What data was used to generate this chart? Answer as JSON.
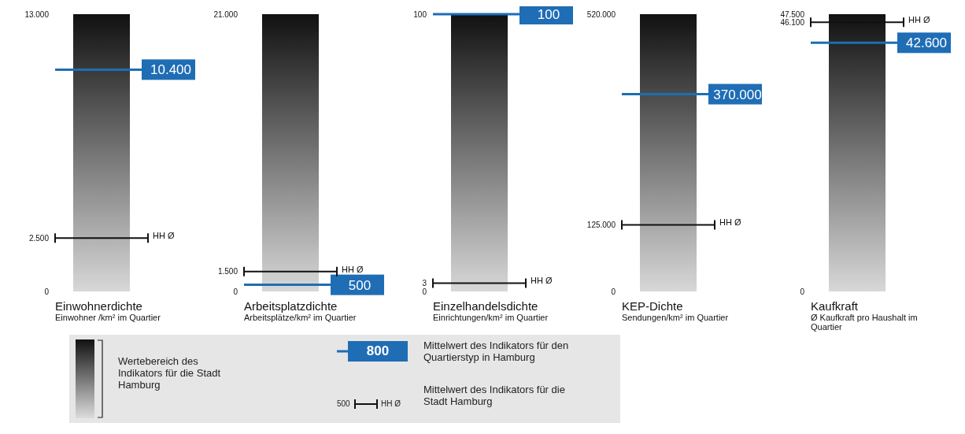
{
  "chart_data": [
    {
      "type": "bar",
      "title": "Einwohnerdichte",
      "subtitle": "Einwohner /km² im Quartier",
      "categories": [
        null
      ],
      "values": [
        13000
      ],
      "color": "#111111",
      "ylim": [
        0,
        13000
      ],
      "yticks": [
        {
          "value": 0,
          "label": "0"
        },
        {
          "value": 2500,
          "label": "2.500"
        },
        {
          "value": 13000,
          "label": "13.000"
        }
      ],
      "ref_lines": [
        {
          "axis": "y",
          "value": 10400,
          "label": "10.400",
          "color": "#1f6db5"
        },
        {
          "axis": "y",
          "value": 2500,
          "label": "HH Ø",
          "color": "#111111"
        }
      ]
    },
    {
      "type": "bar",
      "title": "Arbeitsplatzdichte",
      "subtitle": "Arbeitsplätze/km² im Quartier",
      "categories": [
        null
      ],
      "values": [
        21000
      ],
      "color": "#111111",
      "ylim": [
        0,
        21000
      ],
      "yticks": [
        {
          "value": 0,
          "label": "0"
        },
        {
          "value": 1500,
          "label": "1.500"
        },
        {
          "value": 21000,
          "label": "21.000"
        }
      ],
      "ref_lines": [
        {
          "axis": "y",
          "value": 500,
          "label": "500",
          "color": "#1f6db5"
        },
        {
          "axis": "y",
          "value": 1500,
          "label": "HH Ø",
          "color": "#111111"
        }
      ]
    },
    {
      "type": "bar",
      "title": "Einzelhandelsdichte",
      "subtitle": "Einrichtungen/km² im Quartier",
      "categories": [
        null
      ],
      "values": [
        100
      ],
      "color": "#111111",
      "ylim": [
        0,
        100
      ],
      "yticks": [
        0,
        3,
        100
      ],
      "ref_lines": [
        {
          "axis": "y",
          "value": 100,
          "label": "100",
          "color": "#1f6db5"
        },
        {
          "axis": "y",
          "value": 3,
          "label": "HH Ø",
          "color": "#111111"
        }
      ]
    },
    {
      "type": "bar",
      "title": "KEP-Dichte",
      "subtitle": "Sendungen/km² im Quartier",
      "categories": [
        null
      ],
      "values": [
        520000
      ],
      "color": "#111111",
      "ylim": [
        0,
        520000
      ],
      "yticks": [
        {
          "value": 0,
          "label": "0"
        },
        {
          "value": 125000,
          "label": "125.000"
        },
        {
          "value": 520000,
          "label": "520.000"
        }
      ],
      "ref_lines": [
        {
          "axis": "y",
          "value": 370000,
          "label": "370.000",
          "color": "#1f6db5"
        },
        {
          "axis": "y",
          "value": 125000,
          "label": "HH Ø",
          "color": "#111111"
        }
      ]
    },
    {
      "type": "bar",
      "title": "Kaufkraft",
      "subtitle": "Ø Kaufkraft pro Haushalt im Quartier",
      "categories": [
        null
      ],
      "values": [
        47500
      ],
      "color": "#111111",
      "ylim": [
        0,
        47500
      ],
      "yticks": [
        {
          "value": 0,
          "label": "0"
        },
        {
          "value": 46100,
          "label": "46.100"
        },
        {
          "value": 47500,
          "label": "47.500"
        }
      ],
      "ref_lines": [
        {
          "axis": "y",
          "value": 42600,
          "label": "42.600",
          "color": "#1f6db5"
        },
        {
          "axis": "y",
          "value": 46100,
          "label": "HH Ø",
          "color": "#111111"
        }
      ]
    },
    {
      "type": "other",
      "annotations": [
        "Wertebereich des Indikators für die Stadt Hamburg",
        "800",
        "Mittelwert des Indikators für den Quartierstyp in Hamburg",
        "500",
        "HH Ø",
        "Mittelwert des Indikators für die Stadt Hamburg"
      ]
    }
  ]
}
